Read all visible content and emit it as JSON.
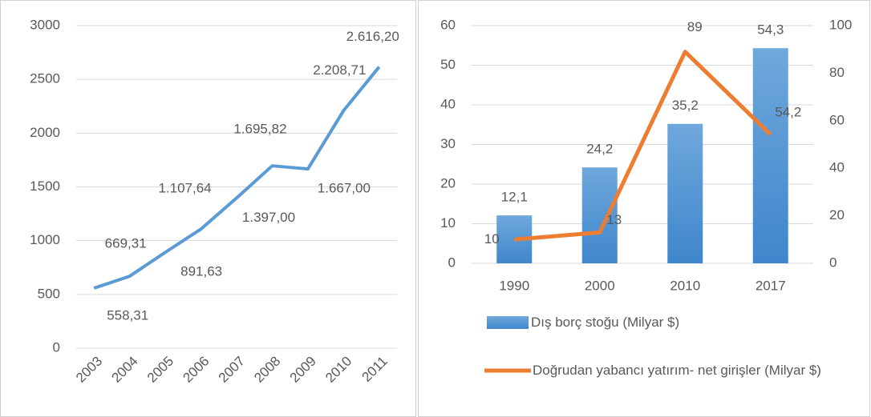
{
  "chart_data": [
    {
      "type": "line",
      "categories": [
        "2003",
        "2004",
        "2005",
        "2006",
        "2007",
        "2008",
        "2009",
        "2010",
        "2011"
      ],
      "values": [
        558.31,
        669.31,
        891.63,
        1107.64,
        1397.0,
        1695.82,
        1667.0,
        2208.71,
        2616.2
      ],
      "value_labels": [
        "558,31",
        "669,31",
        "891,63",
        "1.107,64",
        "1.397,00",
        "1.695,82",
        "1.667,00",
        "2.208,71",
        "2.616,20"
      ],
      "color": "#5b9bd5",
      "ylim": [
        0,
        3000
      ],
      "yticks": [
        0,
        500,
        1000,
        1500,
        2000,
        2500,
        3000
      ],
      "grid": true
    },
    {
      "type": "bar",
      "categories": [
        "1990",
        "2000",
        "2010",
        "2017"
      ],
      "series": [
        {
          "name": "Dış borç stoğu (Milyar $)",
          "type": "bar",
          "color": "#5b9bd5",
          "values": [
            12.1,
            24.2,
            35.2,
            54.3
          ],
          "value_labels": [
            "12,1",
            "24,2",
            "35,2",
            "54,3"
          ]
        },
        {
          "name": "Doğrudan yabancı yatırım- net girişler (Milyar $)",
          "type": "line",
          "axis": "y2",
          "color": "#ed7d31",
          "values": [
            10,
            13,
            89,
            54.2
          ],
          "value_labels": [
            "10",
            "13",
            "89",
            "54,2"
          ]
        }
      ],
      "ylim": [
        0,
        60
      ],
      "yticks": [
        0,
        10,
        20,
        30,
        40,
        50,
        60
      ],
      "y2lim": [
        0,
        100
      ],
      "y2ticks": [
        0,
        20,
        40,
        60,
        80,
        100
      ],
      "grid": true,
      "legend": "bottom"
    }
  ]
}
